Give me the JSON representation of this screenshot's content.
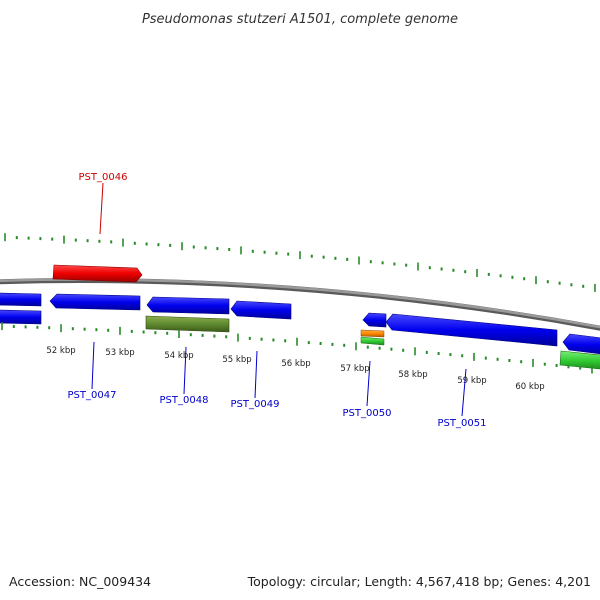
{
  "title": "Pseudomonas stutzeri A1501, complete genome",
  "footer": {
    "accession": "Accession: NC_009434",
    "summary": "Topology: circular; Length: 4,567,418 bp; Genes: 4,201"
  },
  "colors": {
    "backbone": "#8a8a8a",
    "tick_marks": "#2a8a2a",
    "gene_forward": "#ee0000",
    "gene_reverse": "#0000ee",
    "label_red": "#cc0000",
    "label_blue": "#0000cc",
    "rna_olive": "#5f8a2f",
    "rna_green": "#33cc33",
    "rna_orange": "#ff8800"
  },
  "scale_labels": [
    "52 kbp",
    "53 kbp",
    "54 kbp",
    "55 kbp",
    "56 kbp",
    "57 kbp",
    "58 kbp",
    "59 kbp",
    "60 kbp"
  ],
  "gene_labels": [
    {
      "id": "PST_0046",
      "strand": "forward"
    },
    {
      "id": "PST_0047",
      "strand": "reverse"
    },
    {
      "id": "PST_0048",
      "strand": "reverse"
    },
    {
      "id": "PST_0049",
      "strand": "reverse"
    },
    {
      "id": "PST_0050",
      "strand": "reverse"
    },
    {
      "id": "PST_0051",
      "strand": "reverse"
    }
  ]
}
